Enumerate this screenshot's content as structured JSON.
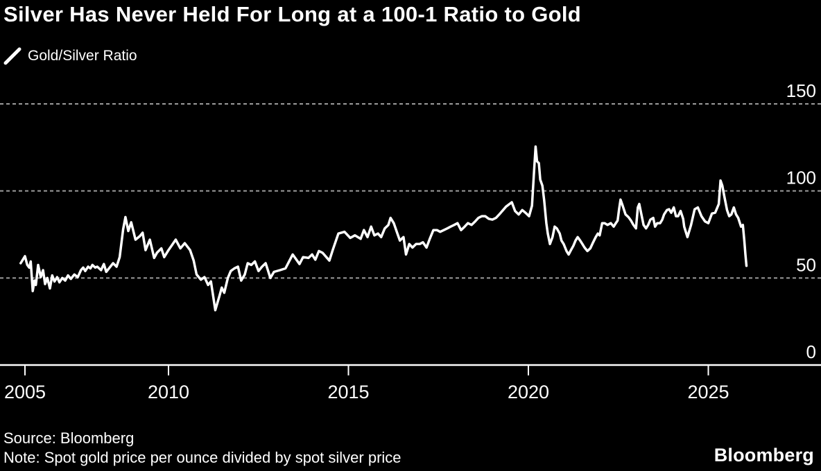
{
  "title": "Silver Has Never Held For Long at a 100-1 Ratio to Gold",
  "legend": {
    "label": "Gold/Silver Ratio"
  },
  "footer": {
    "source": "Source: Bloomberg",
    "note": "Note: Spot gold price per ounce divided by spot silver price"
  },
  "brand": "Bloomberg",
  "colors": {
    "background": "#000000",
    "line": "#ffffff",
    "grid": "#9c9c9c",
    "axis": "#ffffff",
    "text": "#ffffff"
  },
  "chart_data": {
    "type": "line",
    "title": "Silver Has Never Held For Long at a 100-1 Ratio to Gold",
    "xlabel": "",
    "ylabel": "",
    "xlim": [
      2004.85,
      2028.1
    ],
    "ylim": [
      0,
      150
    ],
    "xticks": [
      2005,
      2010,
      2015,
      2020,
      2025
    ],
    "yticks": [
      0,
      50,
      100,
      150
    ],
    "grid": "horizontal-dashed",
    "legend_position": "top-left",
    "series": [
      {
        "name": "Gold/Silver Ratio",
        "points": [
          [
            2004.85,
            58.5
          ],
          [
            2005.0,
            62.5
          ],
          [
            2005.08,
            57.5
          ],
          [
            2005.15,
            56.0
          ],
          [
            2005.2,
            59.5
          ],
          [
            2005.27,
            42.5
          ],
          [
            2005.33,
            48.5
          ],
          [
            2005.38,
            46.0
          ],
          [
            2005.46,
            57.5
          ],
          [
            2005.55,
            50.5
          ],
          [
            2005.63,
            54.5
          ],
          [
            2005.7,
            46.5
          ],
          [
            2005.78,
            50.0
          ],
          [
            2005.87,
            44.0
          ],
          [
            2005.95,
            51.5
          ],
          [
            2006.03,
            48.0
          ],
          [
            2006.12,
            50.5
          ],
          [
            2006.2,
            47.5
          ],
          [
            2006.3,
            50.0
          ],
          [
            2006.4,
            48.5
          ],
          [
            2006.5,
            51.5
          ],
          [
            2006.6,
            49.5
          ],
          [
            2006.72,
            52.0
          ],
          [
            2006.84,
            50.5
          ],
          [
            2006.95,
            54.5
          ],
          [
            2007.03,
            56.0
          ],
          [
            2007.1,
            54.0
          ],
          [
            2007.2,
            56.5
          ],
          [
            2007.28,
            55.5
          ],
          [
            2007.35,
            57.5
          ],
          [
            2007.45,
            56.0
          ],
          [
            2007.52,
            56.5
          ],
          [
            2007.65,
            54.5
          ],
          [
            2007.75,
            58.0
          ],
          [
            2007.83,
            53.5
          ],
          [
            2007.95,
            56.0
          ],
          [
            2008.07,
            58.5
          ],
          [
            2008.19,
            56.5
          ],
          [
            2008.3,
            62.0
          ],
          [
            2008.42,
            78.0
          ],
          [
            2008.5,
            85.0
          ],
          [
            2008.6,
            77.0
          ],
          [
            2008.7,
            82.0
          ],
          [
            2008.85,
            72.0
          ],
          [
            2009.0,
            74.0
          ],
          [
            2009.1,
            76.0
          ],
          [
            2009.2,
            66.0
          ],
          [
            2009.35,
            72.0
          ],
          [
            2009.5,
            61.5
          ],
          [
            2009.6,
            64.5
          ],
          [
            2009.75,
            67.0
          ],
          [
            2009.85,
            62.0
          ],
          [
            2010.0,
            66.0
          ],
          [
            2010.1,
            69.0
          ],
          [
            2010.2,
            72.0
          ],
          [
            2010.33,
            67.0
          ],
          [
            2010.45,
            70.0
          ],
          [
            2010.6,
            66.0
          ],
          [
            2010.7,
            60.0
          ],
          [
            2010.78,
            52.0
          ],
          [
            2010.9,
            49.0
          ],
          [
            2011.0,
            50.5
          ],
          [
            2011.1,
            46.0
          ],
          [
            2011.18,
            48.0
          ],
          [
            2011.3,
            31.5
          ],
          [
            2011.42,
            40.0
          ],
          [
            2011.48,
            44.5
          ],
          [
            2011.55,
            41.5
          ],
          [
            2011.65,
            50.0
          ],
          [
            2011.73,
            54.0
          ],
          [
            2011.83,
            55.5
          ],
          [
            2011.93,
            56.5
          ],
          [
            2012.02,
            48.5
          ],
          [
            2012.12,
            52.0
          ],
          [
            2012.2,
            58.5
          ],
          [
            2012.3,
            57.5
          ],
          [
            2012.4,
            59.5
          ],
          [
            2012.5,
            54.0
          ],
          [
            2012.6,
            56.5
          ],
          [
            2012.7,
            58.5
          ],
          [
            2012.83,
            50.0
          ],
          [
            2012.93,
            53.5
          ],
          [
            2013.1,
            54.5
          ],
          [
            2013.25,
            55.5
          ],
          [
            2013.45,
            63.5
          ],
          [
            2013.64,
            58.0
          ],
          [
            2013.74,
            62.0
          ],
          [
            2013.89,
            61.5
          ],
          [
            2013.99,
            63.5
          ],
          [
            2014.08,
            60.5
          ],
          [
            2014.18,
            65.5
          ],
          [
            2014.28,
            64.5
          ],
          [
            2014.47,
            60.0
          ],
          [
            2014.57,
            66.5
          ],
          [
            2014.72,
            75.5
          ],
          [
            2014.89,
            76.5
          ],
          [
            2015.05,
            73.0
          ],
          [
            2015.18,
            74.5
          ],
          [
            2015.34,
            72.5
          ],
          [
            2015.43,
            77.5
          ],
          [
            2015.53,
            73.5
          ],
          [
            2015.63,
            79.5
          ],
          [
            2015.72,
            74.5
          ],
          [
            2015.82,
            75.5
          ],
          [
            2015.91,
            73.5
          ],
          [
            2016.01,
            78.5
          ],
          [
            2016.11,
            80.5
          ],
          [
            2016.17,
            84.5
          ],
          [
            2016.26,
            81.5
          ],
          [
            2016.36,
            75.5
          ],
          [
            2016.43,
            71.5
          ],
          [
            2016.53,
            73.5
          ],
          [
            2016.6,
            63.5
          ],
          [
            2016.69,
            69.5
          ],
          [
            2016.78,
            67.5
          ],
          [
            2016.88,
            69.5
          ],
          [
            2016.98,
            69.5
          ],
          [
            2017.07,
            70.5
          ],
          [
            2017.17,
            67.5
          ],
          [
            2017.26,
            72.5
          ],
          [
            2017.36,
            77.5
          ],
          [
            2017.46,
            77.5
          ],
          [
            2017.55,
            76.5
          ],
          [
            2017.65,
            77.5
          ],
          [
            2017.75,
            78.5
          ],
          [
            2017.84,
            79.5
          ],
          [
            2017.94,
            80.5
          ],
          [
            2018.03,
            81.5
          ],
          [
            2018.13,
            77.5
          ],
          [
            2018.23,
            79.5
          ],
          [
            2018.32,
            81.5
          ],
          [
            2018.42,
            80.5
          ],
          [
            2018.52,
            82.5
          ],
          [
            2018.61,
            84.5
          ],
          [
            2018.71,
            85.5
          ],
          [
            2018.8,
            85.5
          ],
          [
            2018.9,
            84.0
          ],
          [
            2019.0,
            83.5
          ],
          [
            2019.1,
            84.5
          ],
          [
            2019.19,
            86.5
          ],
          [
            2019.38,
            91.0
          ],
          [
            2019.54,
            93.5
          ],
          [
            2019.63,
            88.5
          ],
          [
            2019.73,
            86.5
          ],
          [
            2019.83,
            89.0
          ],
          [
            2019.92,
            87.5
          ],
          [
            2020.02,
            85.5
          ],
          [
            2020.1,
            91.5
          ],
          [
            2020.16,
            112.0
          ],
          [
            2020.2,
            125.5
          ],
          [
            2020.24,
            117.0
          ],
          [
            2020.29,
            116.0
          ],
          [
            2020.33,
            106.5
          ],
          [
            2020.39,
            103.0
          ],
          [
            2020.44,
            94.5
          ],
          [
            2020.5,
            81.5
          ],
          [
            2020.54,
            75.5
          ],
          [
            2020.6,
            69.5
          ],
          [
            2020.67,
            73.5
          ],
          [
            2020.73,
            79.5
          ],
          [
            2020.79,
            78.5
          ],
          [
            2020.87,
            75.5
          ],
          [
            2020.92,
            71.5
          ],
          [
            2020.98,
            69.5
          ],
          [
            2021.06,
            65.5
          ],
          [
            2021.12,
            63.5
          ],
          [
            2021.17,
            65.5
          ],
          [
            2021.25,
            68.5
          ],
          [
            2021.31,
            71.5
          ],
          [
            2021.37,
            73.5
          ],
          [
            2021.44,
            71.5
          ],
          [
            2021.5,
            69.5
          ],
          [
            2021.56,
            67.5
          ],
          [
            2021.64,
            65.5
          ],
          [
            2021.72,
            67.0
          ],
          [
            2021.8,
            70.5
          ],
          [
            2021.87,
            73.5
          ],
          [
            2021.93,
            75.5
          ],
          [
            2021.98,
            74.5
          ],
          [
            2022.05,
            81.5
          ],
          [
            2022.12,
            81.5
          ],
          [
            2022.2,
            80.5
          ],
          [
            2022.29,
            81.5
          ],
          [
            2022.37,
            79.5
          ],
          [
            2022.43,
            81.5
          ],
          [
            2022.48,
            83.0
          ],
          [
            2022.52,
            89.5
          ],
          [
            2022.56,
            95.0
          ],
          [
            2022.62,
            91.5
          ],
          [
            2022.7,
            86.5
          ],
          [
            2022.78,
            85.0
          ],
          [
            2022.85,
            83.0
          ],
          [
            2022.92,
            80.5
          ],
          [
            2022.99,
            78.5
          ],
          [
            2023.04,
            90.5
          ],
          [
            2023.08,
            92.5
          ],
          [
            2023.14,
            86.5
          ],
          [
            2023.2,
            80.5
          ],
          [
            2023.27,
            78.5
          ],
          [
            2023.33,
            80.5
          ],
          [
            2023.39,
            83.5
          ],
          [
            2023.47,
            84.5
          ],
          [
            2023.52,
            79.5
          ],
          [
            2023.58,
            81.5
          ],
          [
            2023.66,
            81.5
          ],
          [
            2023.72,
            83.5
          ],
          [
            2023.77,
            86.5
          ],
          [
            2023.85,
            89.0
          ],
          [
            2023.91,
            89.5
          ],
          [
            2023.97,
            87.5
          ],
          [
            2024.04,
            90.5
          ],
          [
            2024.1,
            85.5
          ],
          [
            2024.16,
            85.5
          ],
          [
            2024.23,
            88.5
          ],
          [
            2024.3,
            84.0
          ],
          [
            2024.33,
            79.5
          ],
          [
            2024.42,
            73.5
          ],
          [
            2024.52,
            80.5
          ],
          [
            2024.62,
            89.5
          ],
          [
            2024.71,
            90.5
          ],
          [
            2024.81,
            85.5
          ],
          [
            2024.91,
            82.5
          ],
          [
            2025.0,
            81.5
          ],
          [
            2025.1,
            87.0
          ],
          [
            2025.19,
            87.5
          ],
          [
            2025.29,
            92.5
          ],
          [
            2025.34,
            106.0
          ],
          [
            2025.39,
            103.0
          ],
          [
            2025.44,
            97.5
          ],
          [
            2025.52,
            89.0
          ],
          [
            2025.58,
            85.5
          ],
          [
            2025.64,
            86.5
          ],
          [
            2025.71,
            90.5
          ],
          [
            2025.77,
            86.5
          ],
          [
            2025.83,
            84.5
          ],
          [
            2025.91,
            79.5
          ],
          [
            2025.96,
            80.5
          ],
          [
            2026.0,
            71.5
          ],
          [
            2026.03,
            63.5
          ],
          [
            2026.06,
            57.0
          ]
        ]
      }
    ]
  }
}
